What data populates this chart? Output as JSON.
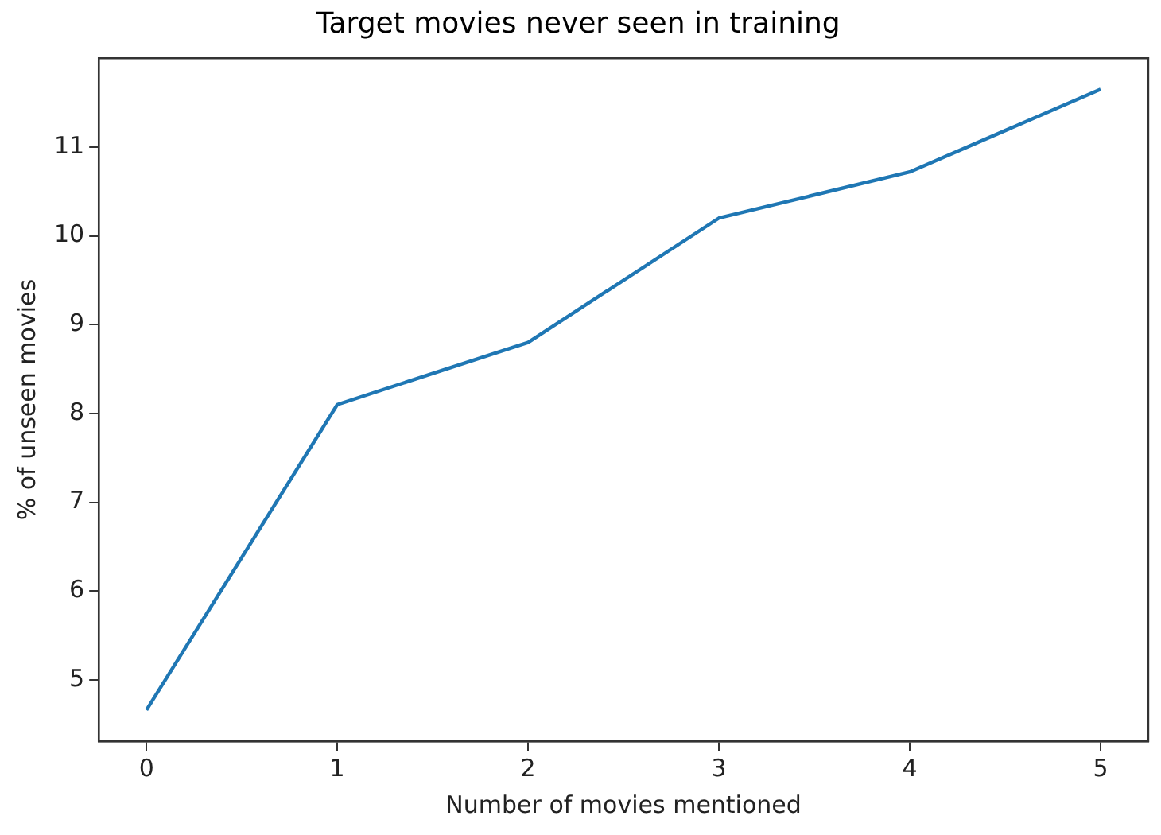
{
  "chart_data": {
    "type": "line",
    "title": "Target movies never seen in training",
    "xlabel": "Number of movies mentioned",
    "ylabel": "% of unseen movies",
    "x": [
      0,
      1,
      2,
      3,
      4,
      5
    ],
    "series": [
      {
        "color": "#1f77b4",
        "values": [
          4.66,
          8.1,
          8.8,
          10.2,
          10.72,
          11.65
        ]
      }
    ],
    "xlim": [
      -0.25,
      5.25
    ],
    "xticks": [
      0,
      1,
      2,
      3,
      4,
      5
    ],
    "ylim": [
      4.31,
      12.0
    ],
    "yticks": [
      5,
      6,
      7,
      8,
      9,
      10,
      11
    ],
    "marker": "none",
    "line_style": "solid",
    "legend": false
  }
}
